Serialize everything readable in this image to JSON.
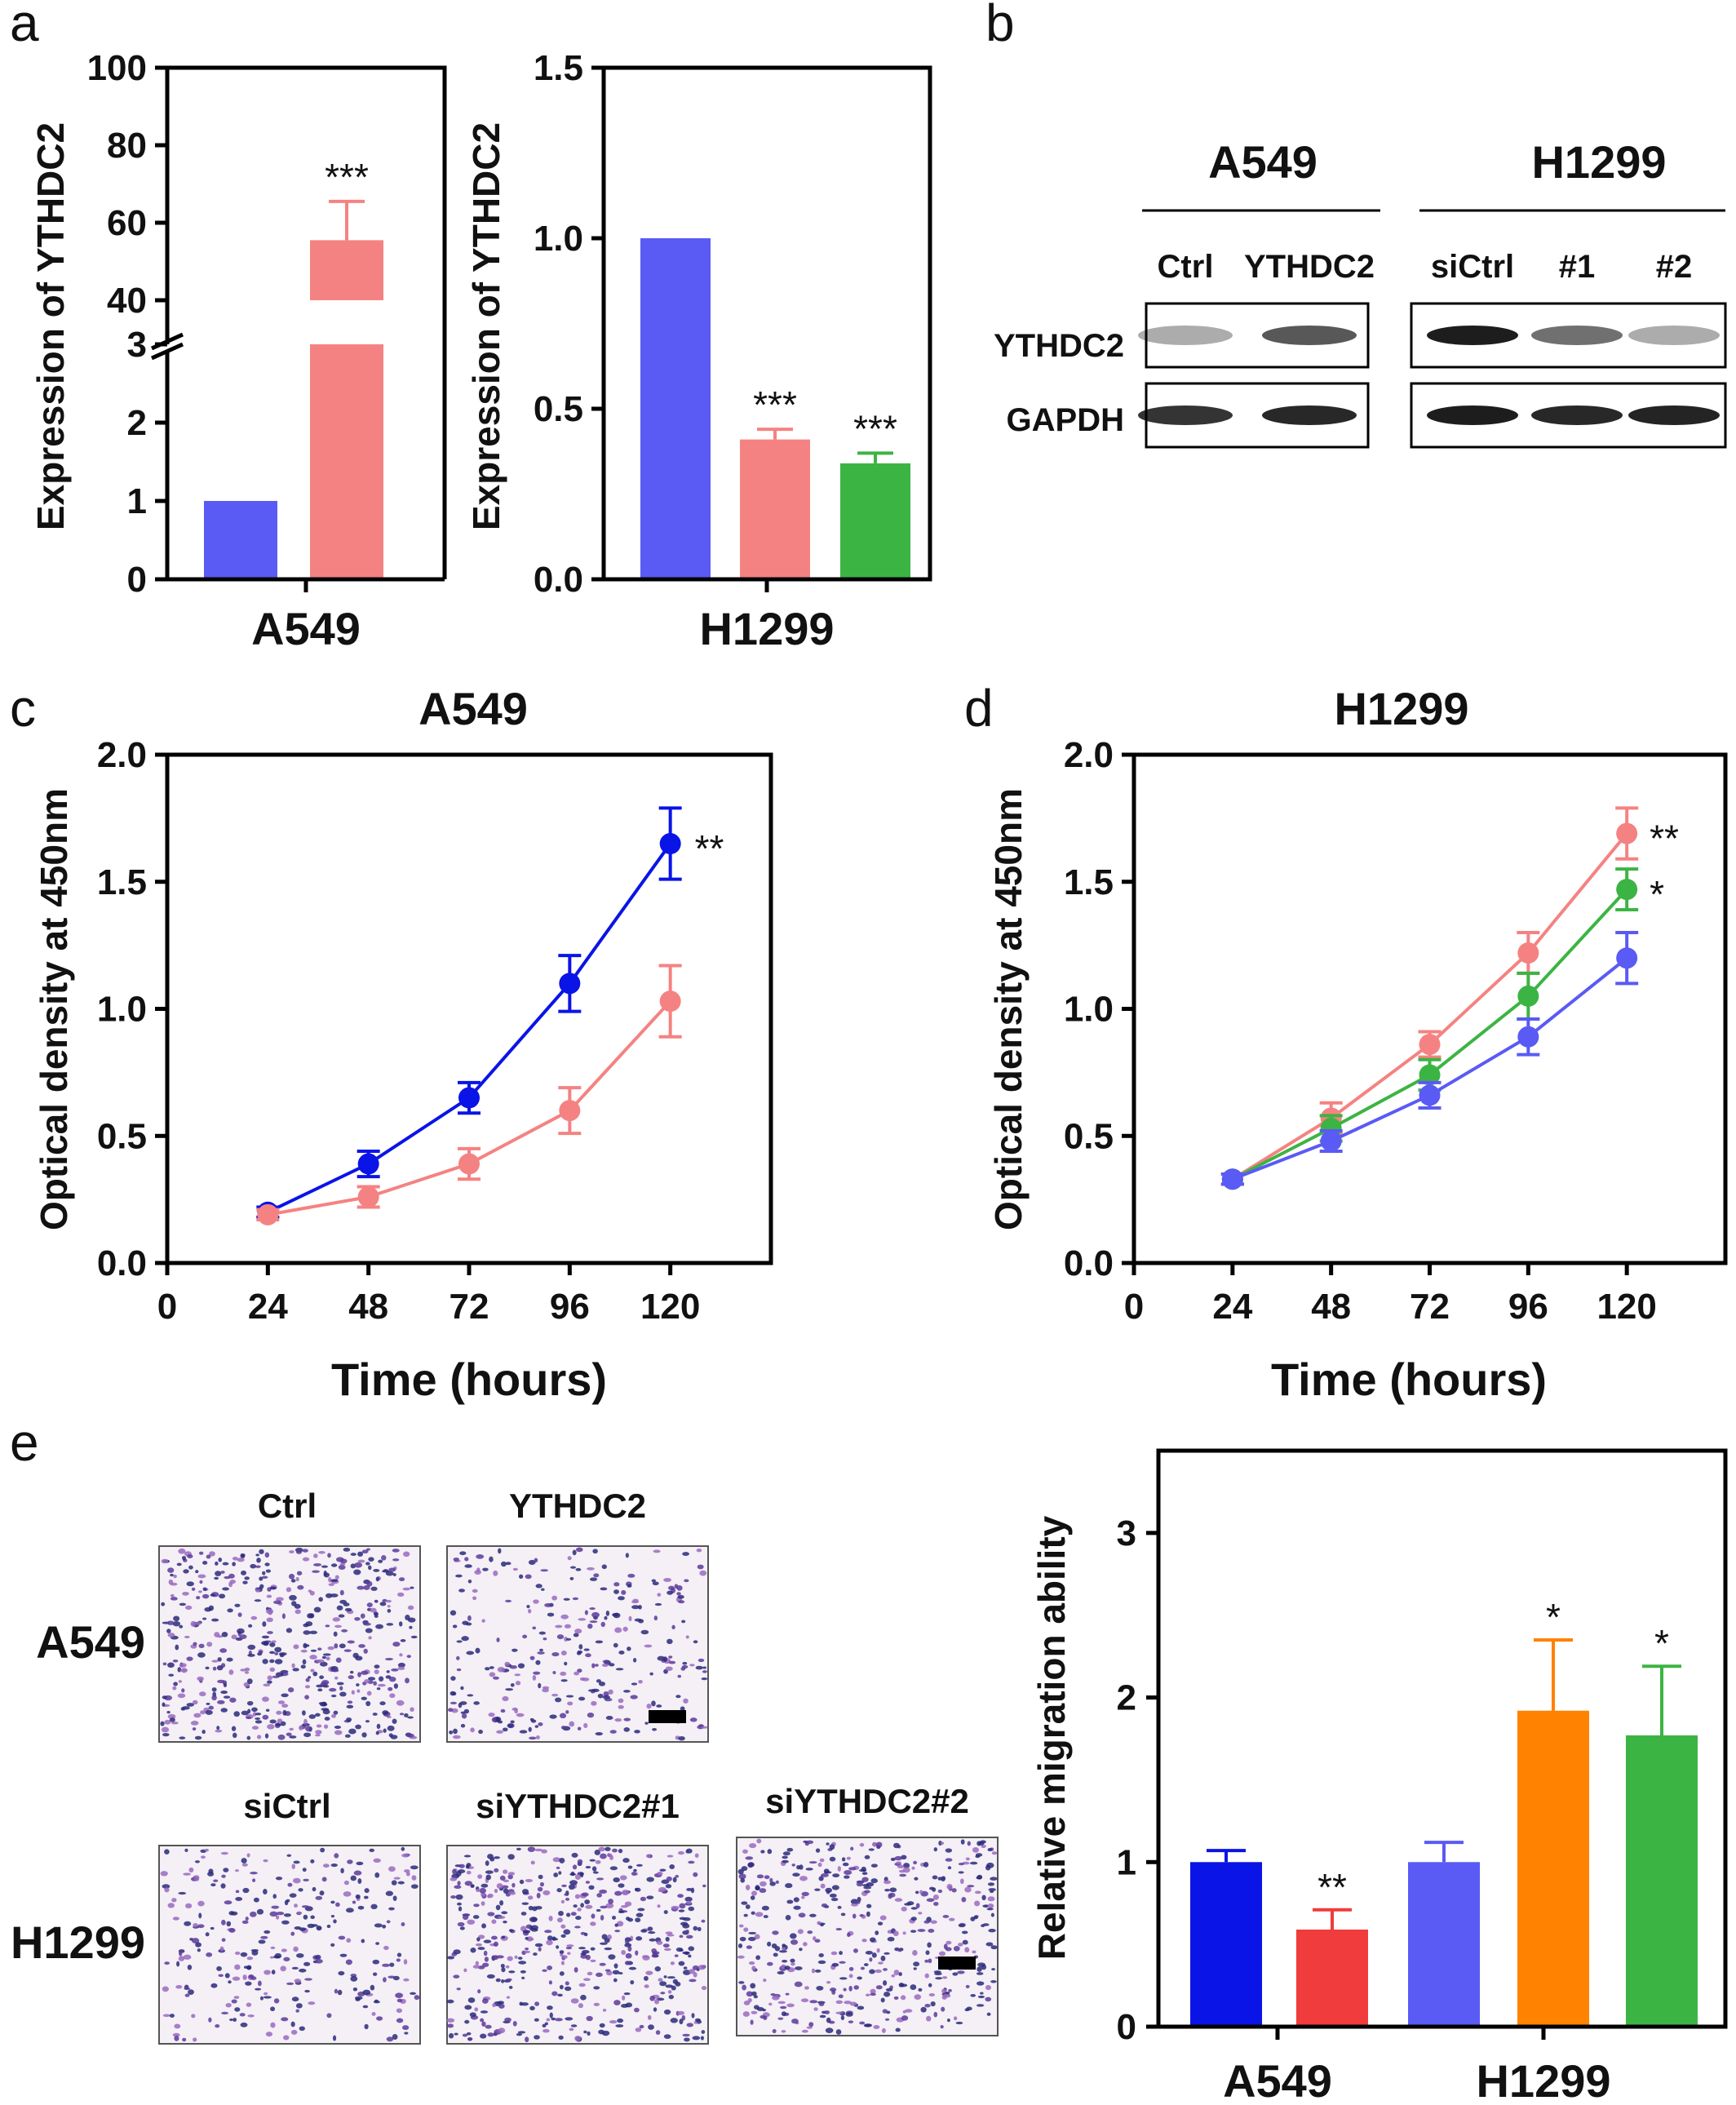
{
  "panel_labels": {
    "a": "a",
    "b": "b",
    "c": "c",
    "d": "d",
    "e": "e"
  },
  "colors": {
    "blue": "#5a5af5",
    "pink": "#f58282",
    "green": "#3cb443",
    "dark_blue": "#0a14e6",
    "red": "#f03c3c",
    "orange": "#ff8200"
  },
  "chart_data": [
    {
      "id": "a_left",
      "type": "bar",
      "xlabel": "A549",
      "ylabel": "Expression of YTHDC2",
      "categories": [
        "",
        ""
      ],
      "values": [
        1.0,
        55.5
      ],
      "errors": [
        0,
        10
      ],
      "colors": [
        "#5a5af5",
        "#f58282"
      ],
      "broken_axis": {
        "lower": [
          0,
          3
        ],
        "upper": [
          40,
          100
        ]
      },
      "annotations": [
        "",
        "***"
      ]
    },
    {
      "id": "a_right",
      "type": "bar",
      "xlabel": "H1299",
      "ylabel": "Expression of YTHDC2",
      "categories": [
        "",
        "",
        ""
      ],
      "values": [
        1.0,
        0.41,
        0.34
      ],
      "errors": [
        0,
        0.03,
        0.03
      ],
      "colors": [
        "#5a5af5",
        "#f58282",
        "#3cb443"
      ],
      "ylim": [
        0,
        1.5
      ],
      "annotations": [
        "",
        "***",
        "***"
      ]
    },
    {
      "id": "c",
      "type": "line",
      "title": "A549",
      "xlabel": "Time (hours)",
      "ylabel": "Optical density at 450nm",
      "x": [
        24,
        48,
        72,
        96,
        120
      ],
      "xlim": [
        0,
        144
      ],
      "ylim": [
        0,
        2.0
      ],
      "series": [
        {
          "color": "#0a14e6",
          "values": [
            0.2,
            0.39,
            0.65,
            1.1,
            1.65
          ],
          "errors": [
            0.02,
            0.05,
            0.06,
            0.11,
            0.14
          ]
        },
        {
          "color": "#f58282",
          "values": [
            0.19,
            0.26,
            0.39,
            0.6,
            1.03
          ],
          "errors": [
            0.02,
            0.04,
            0.06,
            0.09,
            0.14
          ]
        }
      ],
      "annotations": [
        "**"
      ]
    },
    {
      "id": "d",
      "type": "line",
      "title": "H1299",
      "xlabel": "Time (hours)",
      "ylabel": "Optical density at 450nm",
      "x": [
        24,
        48,
        72,
        96,
        120
      ],
      "xlim": [
        0,
        144
      ],
      "ylim": [
        0,
        2.0
      ],
      "series": [
        {
          "color": "#f58282",
          "values": [
            0.33,
            0.57,
            0.86,
            1.22,
            1.69
          ],
          "errors": [
            0.02,
            0.06,
            0.05,
            0.08,
            0.1
          ]
        },
        {
          "color": "#3cb443",
          "values": [
            0.33,
            0.53,
            0.74,
            1.05,
            1.47
          ],
          "errors": [
            0.02,
            0.05,
            0.06,
            0.09,
            0.08
          ]
        },
        {
          "color": "#5a5af5",
          "values": [
            0.33,
            0.48,
            0.66,
            0.89,
            1.2
          ],
          "errors": [
            0.02,
            0.04,
            0.05,
            0.07,
            0.1
          ]
        }
      ],
      "annotations": [
        "**",
        "*"
      ]
    },
    {
      "id": "e_bar",
      "type": "bar",
      "ylabel": "Relative migration ability",
      "group_labels": [
        "A549",
        "H1299"
      ],
      "values": [
        1.0,
        0.59,
        1.0,
        1.92,
        1.77
      ],
      "errors": [
        0.07,
        0.12,
        0.12,
        0.43,
        0.42
      ],
      "colors": [
        "#0a14e6",
        "#f03c3c",
        "#5a5af5",
        "#ff8200",
        "#3cb443"
      ],
      "ylim": [
        0,
        3.5
      ],
      "annotations": [
        "",
        "**",
        "",
        "*",
        "*"
      ]
    }
  ],
  "western_blot": {
    "groups": [
      "A549",
      "H1299"
    ],
    "lanes_a549": [
      "Ctrl",
      "YTHDC2"
    ],
    "lanes_h1299": [
      "siCtrl",
      "#1",
      "#2"
    ],
    "rows": [
      "YTHDC2",
      "GAPDH"
    ],
    "band_intensity_a549": [
      [
        0.35,
        0.7
      ],
      [
        0.85,
        0.9
      ]
    ],
    "band_intensity_h1299": [
      [
        0.95,
        0.6,
        0.35
      ],
      [
        0.95,
        0.9,
        0.92
      ]
    ]
  },
  "migration_images": {
    "col_labels_top": [
      "Ctrl",
      "YTHDC2"
    ],
    "col_labels_bottom": [
      "siCtrl",
      "siYTHDC2#1",
      "siYTHDC2#2"
    ],
    "row_labels": [
      "A549",
      "H1299"
    ]
  }
}
